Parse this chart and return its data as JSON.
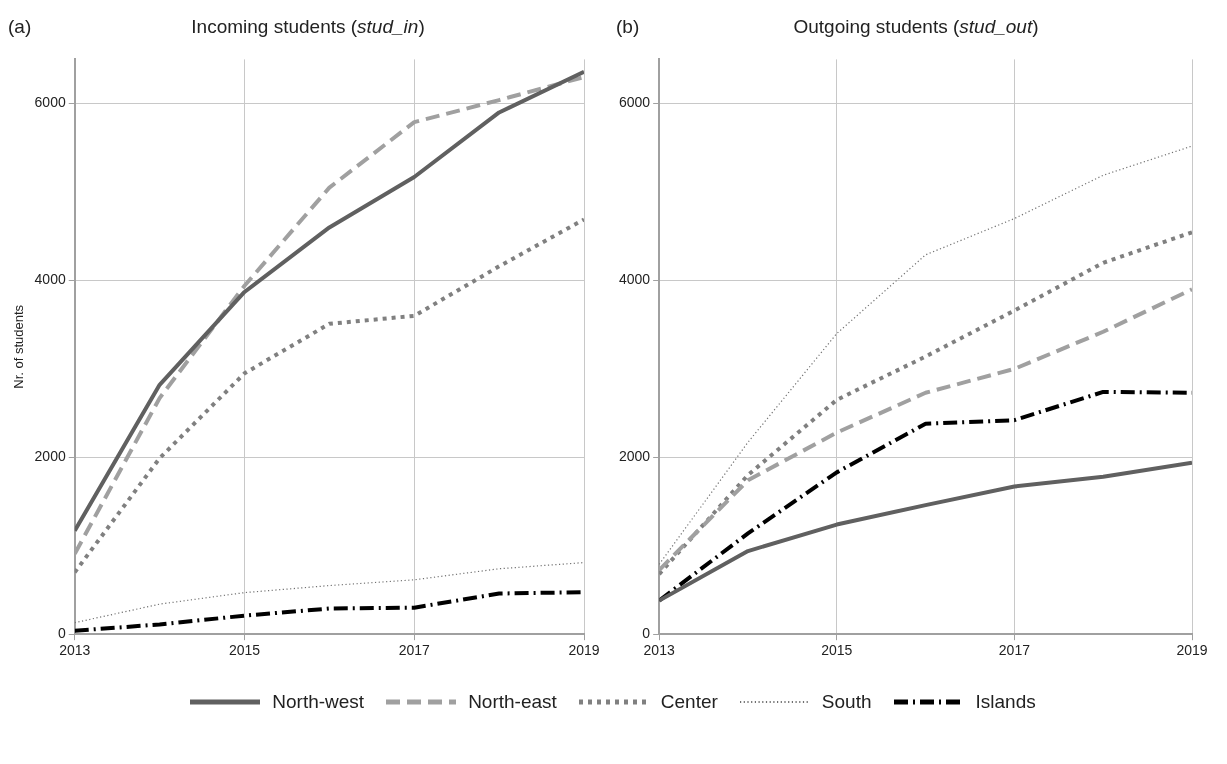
{
  "chart_data": [
    {
      "type": "line",
      "title": "Incoming students (stud_in)",
      "ylabel": "Nr. of students",
      "annotations": [
        "(a)"
      ],
      "x": [
        2013,
        2014,
        2015,
        2016,
        2017,
        2018,
        2019
      ],
      "xlim": [
        2013,
        2019
      ],
      "xticks": [
        2013,
        2015,
        2017,
        2019
      ],
      "ylim": [
        0,
        6500
      ],
      "yticks": [
        0,
        2000,
        4000,
        6000
      ],
      "grid": true,
      "legend": "bottom",
      "marker": "none",
      "series": [
        {
          "name": "North-west",
          "color": "#606060",
          "line_style": "solid",
          "values": [
            1170,
            2820,
            3870,
            4600,
            5170,
            5900,
            6360
          ]
        },
        {
          "name": "North-east",
          "color": "#a0a0a0",
          "line_style": "dashed",
          "values": [
            910,
            2670,
            3940,
            5050,
            5790,
            6040,
            6300
          ]
        },
        {
          "name": "Center",
          "color": "#808080",
          "line_style": "dotted",
          "values": [
            700,
            1990,
            2950,
            3510,
            3600,
            4160,
            4690
          ]
        },
        {
          "name": "South",
          "color": "#707070",
          "line_style": "dotted",
          "values": [
            130,
            340,
            470,
            550,
            615,
            740,
            810
          ]
        },
        {
          "name": "Islands",
          "color": "#000000",
          "line_style": "dashdot",
          "values": [
            40,
            110,
            210,
            290,
            300,
            460,
            475
          ]
        }
      ]
    },
    {
      "type": "line",
      "title": "Outgoing students (stud_out)",
      "annotations": [
        "(b)"
      ],
      "x": [
        2013,
        2014,
        2015,
        2016,
        2017,
        2018,
        2019
      ],
      "xlim": [
        2013,
        2019
      ],
      "xticks": [
        2013,
        2015,
        2017,
        2019
      ],
      "ylim": [
        0,
        6500
      ],
      "yticks": [
        0,
        2000,
        4000,
        6000
      ],
      "grid": true,
      "marker": "none",
      "series": [
        {
          "color": "#606060",
          "line_style": "solid",
          "values": [
            380,
            940,
            1240,
            1460,
            1670,
            1780,
            1940
          ]
        },
        {
          "color": "#a0a0a0",
          "line_style": "dashed",
          "values": [
            725,
            1740,
            2280,
            2730,
            3000,
            3420,
            3900
          ]
        },
        {
          "color": "#808080",
          "line_style": "dotted",
          "values": [
            680,
            1800,
            2650,
            3140,
            3660,
            4200,
            4545
          ]
        },
        {
          "color": "#707070",
          "line_style": "dotted",
          "values": [
            790,
            2170,
            3400,
            4290,
            4700,
            5190,
            5520
          ]
        },
        {
          "color": "#000000",
          "line_style": "dashdot",
          "values": [
            380,
            1140,
            1830,
            2380,
            2420,
            2740,
            2730
          ]
        }
      ]
    }
  ]
}
